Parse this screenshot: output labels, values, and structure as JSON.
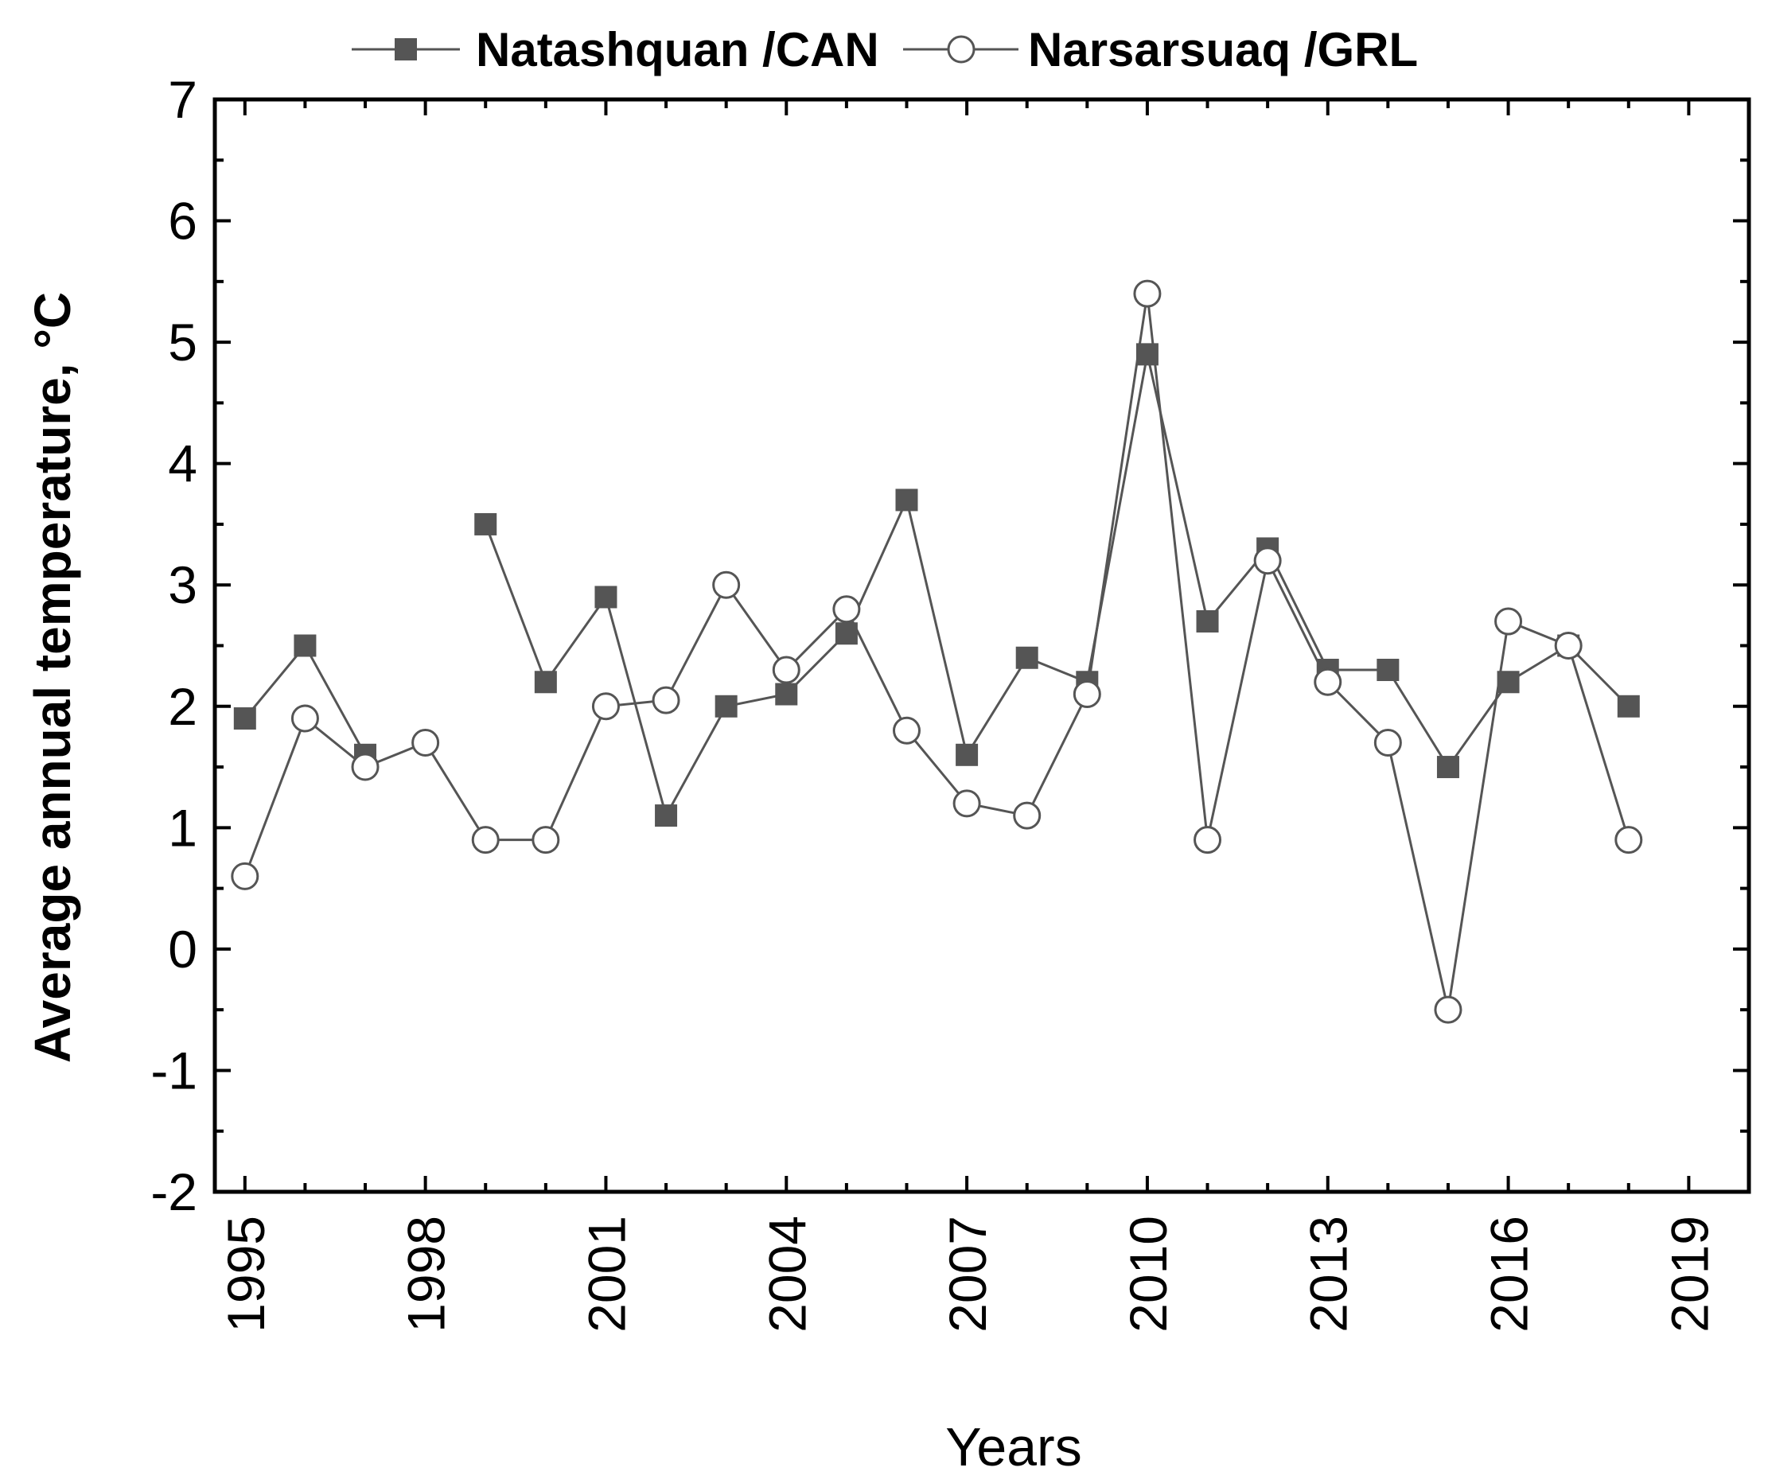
{
  "colors": {
    "background": "#ffffff",
    "axis": "#000000",
    "series_line": "#555555",
    "square_marker": "#555555",
    "circle_fill": "#ffffff"
  },
  "legend": {
    "items": [
      {
        "label": "Natashquan /CAN",
        "marker": "filled-square"
      },
      {
        "label": "Narsarsuaq /GRL",
        "marker": "open-circle"
      }
    ]
  },
  "chart_data": {
    "type": "line",
    "title": "",
    "xlabel": "Years",
    "ylabel": "Average annual temperature, °C",
    "xlim": [
      1994.5,
      2020
    ],
    "ylim": [
      -2,
      7
    ],
    "x_ticks": [
      1995,
      1998,
      2001,
      2004,
      2007,
      2010,
      2013,
      2016,
      2019
    ],
    "y_ticks": [
      -2,
      -1,
      0,
      1,
      2,
      3,
      4,
      5,
      6,
      7
    ],
    "legend_position": "top-center",
    "series": [
      {
        "name": "Natashquan /CAN",
        "marker": "filled-square",
        "segments": [
          [
            [
              1995,
              1.9
            ],
            [
              1996,
              2.5
            ],
            [
              1997,
              1.6
            ]
          ],
          [
            [
              1999,
              3.5
            ],
            [
              2000,
              2.2
            ],
            [
              2001,
              2.9
            ],
            [
              2002,
              1.1
            ],
            [
              2003,
              2.0
            ],
            [
              2004,
              2.1
            ],
            [
              2005,
              2.6
            ],
            [
              2006,
              3.7
            ],
            [
              2007,
              1.6
            ],
            [
              2008,
              2.4
            ],
            [
              2009,
              2.2
            ],
            [
              2010,
              4.9
            ],
            [
              2011,
              2.7
            ],
            [
              2012,
              3.3
            ],
            [
              2013,
              2.3
            ],
            [
              2014,
              2.3
            ],
            [
              2015,
              1.5
            ],
            [
              2016,
              2.2
            ],
            [
              2017,
              2.5
            ],
            [
              2018,
              2.0
            ]
          ]
        ]
      },
      {
        "name": "Narsarsuaq /GRL",
        "marker": "open-circle",
        "segments": [
          [
            [
              1995,
              0.6
            ],
            [
              1996,
              1.9
            ],
            [
              1997,
              1.5
            ],
            [
              1998,
              1.7
            ],
            [
              1999,
              0.9
            ],
            [
              2000,
              0.9
            ],
            [
              2001,
              2.0
            ],
            [
              2002,
              2.05
            ],
            [
              2003,
              3.0
            ],
            [
              2004,
              2.3
            ],
            [
              2005,
              2.8
            ],
            [
              2006,
              1.8
            ],
            [
              2007,
              1.2
            ],
            [
              2008,
              1.1
            ],
            [
              2009,
              2.1
            ],
            [
              2010,
              5.4
            ],
            [
              2011,
              0.9
            ],
            [
              2012,
              3.2
            ],
            [
              2013,
              2.2
            ],
            [
              2014,
              1.7
            ],
            [
              2015,
              -0.5
            ],
            [
              2016,
              2.7
            ],
            [
              2017,
              2.5
            ],
            [
              2018,
              0.9
            ]
          ]
        ]
      }
    ]
  }
}
